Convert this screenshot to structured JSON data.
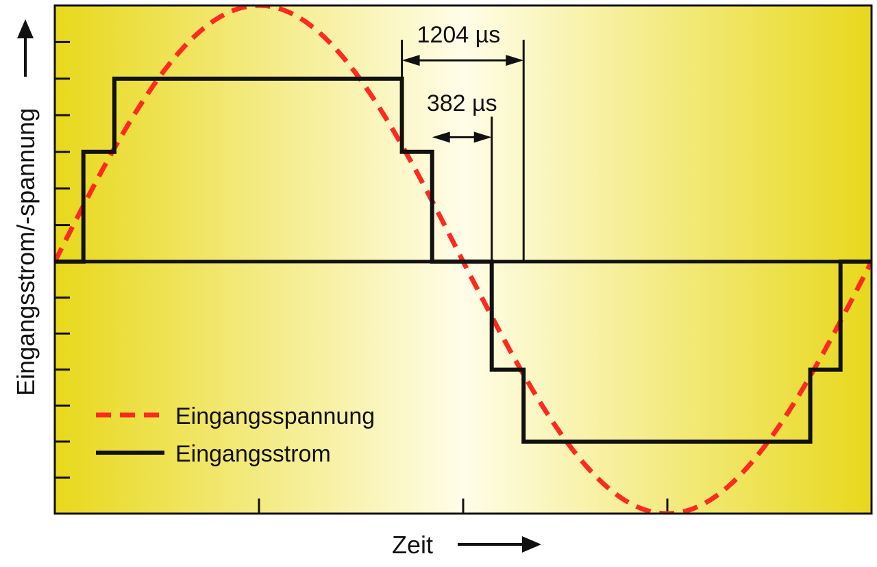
{
  "chart_data": {
    "type": "line",
    "title": "",
    "xlabel": "Zeit",
    "ylabel": "Eingangsstrom/-spannung",
    "xlim": [
      0,
      1
    ],
    "ylim": [
      -7,
      7
    ],
    "grid": false,
    "legend_position": "bottom-left",
    "background": {
      "edge": "#e8d81c",
      "center": "#fffde8"
    },
    "series": [
      {
        "name": "Eingangsspannung",
        "style": "dashed",
        "color": "#ff2a1f",
        "kind": "sine",
        "amplitude": 7,
        "period": 1.0,
        "phase": 0.0
      },
      {
        "name": "Eingangsstrom",
        "style": "solid",
        "color": "#111111",
        "x": [
          0.0,
          0.035,
          0.035,
          0.073,
          0.073,
          0.425,
          0.425,
          0.462,
          0.462,
          0.535,
          0.535,
          0.574,
          0.574,
          0.925,
          0.925,
          0.962,
          0.962,
          1.0
        ],
        "y": [
          0,
          0,
          3,
          3,
          5,
          5,
          3,
          3,
          0,
          0,
          -3,
          -3,
          -5,
          -5,
          -3,
          -3,
          0,
          0
        ]
      }
    ],
    "annotations": [
      {
        "label": "1204 µs",
        "from_x": 0.425,
        "to_x": 0.574,
        "y": 5.5
      },
      {
        "label": "382 µs",
        "from_x": 0.462,
        "to_x": 0.535,
        "y": 3.4
      }
    ]
  }
}
